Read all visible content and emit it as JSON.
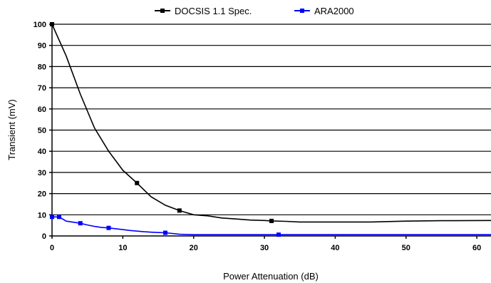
{
  "chart_data": {
    "type": "line",
    "title": "",
    "xlabel": "Power Attenuation (dB)",
    "ylabel": "Transient (mV)",
    "xlim": [
      0,
      62
    ],
    "ylim": [
      0,
      100
    ],
    "x_ticks": [
      0,
      10,
      20,
      30,
      40,
      50,
      60
    ],
    "y_ticks": [
      0,
      10,
      20,
      30,
      40,
      50,
      60,
      70,
      80,
      90,
      100
    ],
    "grid": "horizontal",
    "legend_position": "top",
    "series": [
      {
        "name": "DOCSIS 1.1 Spec.",
        "color": "#000000",
        "marker": "square",
        "points": [
          [
            0,
            100
          ],
          [
            2,
            85
          ],
          [
            4,
            67
          ],
          [
            6,
            51
          ],
          [
            8,
            40
          ],
          [
            10,
            31
          ],
          [
            12,
            25
          ],
          [
            14,
            18.5
          ],
          [
            16,
            14.5
          ],
          [
            18,
            12
          ],
          [
            20,
            10
          ],
          [
            22,
            9.5
          ],
          [
            24,
            8.5
          ],
          [
            26,
            8
          ],
          [
            28,
            7.5
          ],
          [
            30,
            7.3
          ],
          [
            31,
            7.1
          ],
          [
            33,
            6.9
          ],
          [
            35,
            6.6
          ],
          [
            40,
            6.6
          ],
          [
            45,
            6.6
          ],
          [
            50,
            7
          ],
          [
            55,
            7.2
          ],
          [
            62,
            7.3
          ]
        ],
        "marker_x": [
          0,
          12,
          18,
          31
        ]
      },
      {
        "name": "ARA2000",
        "color": "#0000ff",
        "marker": "square",
        "points": [
          [
            0,
            9
          ],
          [
            1,
            9
          ],
          [
            2,
            7
          ],
          [
            3,
            6.5
          ],
          [
            4,
            6
          ],
          [
            5,
            5.2
          ],
          [
            6,
            4.5
          ],
          [
            7,
            4
          ],
          [
            8,
            3.8
          ],
          [
            9,
            3.4
          ],
          [
            10,
            3
          ],
          [
            11,
            2.6
          ],
          [
            12,
            2.3
          ],
          [
            13,
            2
          ],
          [
            14,
            1.8
          ],
          [
            15,
            1.6
          ],
          [
            16,
            1.5
          ],
          [
            18,
            0.8
          ],
          [
            20,
            0.6
          ],
          [
            25,
            0.6
          ],
          [
            30,
            0.6
          ],
          [
            32,
            0.6
          ],
          [
            40,
            0.6
          ],
          [
            50,
            0.6
          ],
          [
            62,
            0.6
          ]
        ],
        "marker_x": [
          0,
          1,
          4,
          8,
          16,
          32
        ]
      }
    ]
  }
}
